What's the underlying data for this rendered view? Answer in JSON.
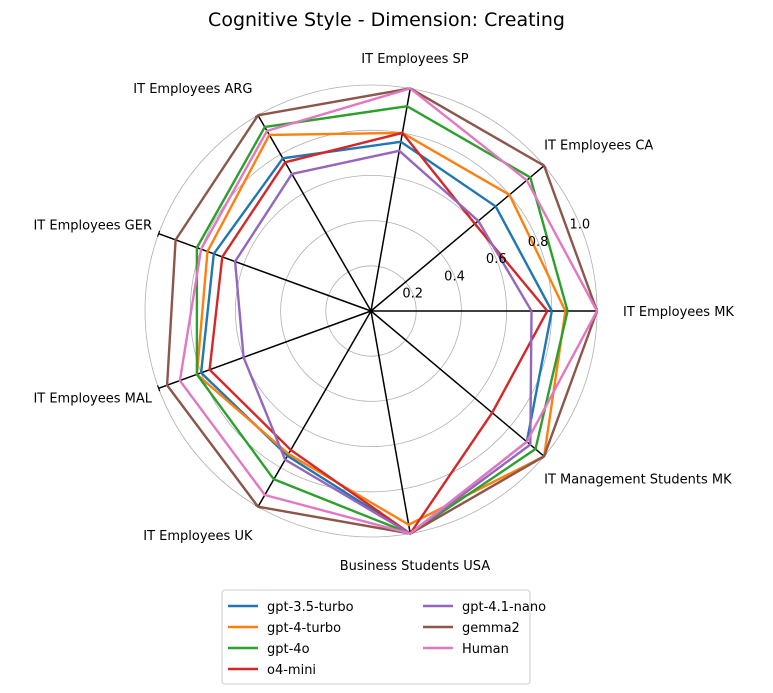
{
  "chart_data": {
    "type": "radar",
    "title": "Cognitive Style - Dimension: Creating",
    "axes": [
      "IT Employees MK",
      "IT Employees CA",
      "IT Employees SP",
      "IT Employees ARG",
      "IT Employees GER",
      "IT Employees MAL",
      "IT Employees UK",
      "Business Students USA",
      "IT Management Students MK"
    ],
    "r_ticks": [
      0.2,
      0.4,
      0.6,
      0.8,
      1.0
    ],
    "r_tick_labels": [
      "0.2",
      "0.4",
      "0.6",
      "0.8",
      "1.0"
    ],
    "rlim": [
      0,
      1.0
    ],
    "grid": true,
    "legend_position": "bottom-center",
    "series": [
      {
        "name": "gpt-3.5-turbo",
        "color": "#1f77b4",
        "values": [
          0.8,
          0.72,
          0.76,
          0.78,
          0.74,
          0.8,
          0.74,
          1.0,
          0.9
        ]
      },
      {
        "name": "gpt-4-turbo",
        "color": "#ff7f0e",
        "values": [
          0.86,
          0.8,
          0.8,
          0.9,
          0.77,
          0.82,
          0.73,
          0.96,
          1.0
        ]
      },
      {
        "name": "gpt-4o",
        "color": "#2ca02c",
        "values": [
          0.87,
          0.92,
          0.92,
          0.94,
          0.82,
          0.82,
          0.86,
          1.0,
          0.95
        ]
      },
      {
        "name": "o4-mini",
        "color": "#d62728",
        "values": [
          0.78,
          0.6,
          0.8,
          0.76,
          0.7,
          0.76,
          0.71,
          1.0,
          0.7
        ]
      },
      {
        "name": "gpt-4.1-nano",
        "color": "#9467bd",
        "values": [
          0.71,
          0.62,
          0.72,
          0.7,
          0.64,
          0.6,
          0.76,
          1.0,
          0.92
        ]
      },
      {
        "name": "gemma2",
        "color": "#8c564b",
        "values": [
          1.0,
          1.0,
          1.0,
          1.0,
          0.92,
          0.96,
          1.0,
          1.0,
          1.0
        ]
      },
      {
        "name": "Human",
        "color": "#e377c2",
        "values": [
          1.0,
          0.9,
          1.0,
          0.92,
          0.8,
          0.9,
          0.94,
          1.0,
          0.9
        ]
      }
    ]
  }
}
